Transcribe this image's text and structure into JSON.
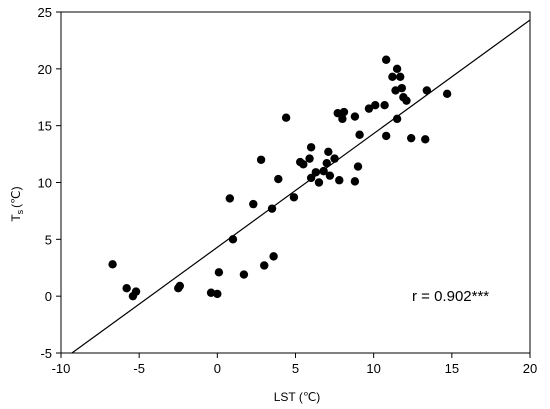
{
  "chart_data": {
    "type": "scatter",
    "title": "",
    "xlabel": "LST (℃)",
    "ylabel_main": "T",
    "ylabel_sub": "s",
    "ylabel_unit": "(℃)",
    "xlim": [
      -10,
      20
    ],
    "ylim": [
      -5,
      25
    ],
    "xticks": [
      -10,
      -5,
      0,
      5,
      10,
      15,
      20
    ],
    "yticks": [
      -5,
      0,
      5,
      10,
      15,
      20,
      25
    ],
    "grid": false,
    "annotation": "r = 0.902***",
    "fit_line": {
      "slope": 1.0,
      "intercept": 4.3
    },
    "points": [
      {
        "x": -6.7,
        "y": 2.8
      },
      {
        "x": -5.8,
        "y": 0.7
      },
      {
        "x": -5.4,
        "y": 0.0
      },
      {
        "x": -5.2,
        "y": 0.4
      },
      {
        "x": -2.5,
        "y": 0.7
      },
      {
        "x": -2.4,
        "y": 0.9
      },
      {
        "x": -0.4,
        "y": 0.3
      },
      {
        "x": 0.0,
        "y": 0.2
      },
      {
        "x": 0.1,
        "y": 2.1
      },
      {
        "x": 0.8,
        "y": 8.6
      },
      {
        "x": 1.0,
        "y": 5.0
      },
      {
        "x": 1.7,
        "y": 1.9
      },
      {
        "x": 2.3,
        "y": 8.1
      },
      {
        "x": 2.8,
        "y": 12.0
      },
      {
        "x": 3.0,
        "y": 2.7
      },
      {
        "x": 3.5,
        "y": 7.7
      },
      {
        "x": 3.6,
        "y": 3.5
      },
      {
        "x": 3.9,
        "y": 10.3
      },
      {
        "x": 4.4,
        "y": 15.7
      },
      {
        "x": 4.9,
        "y": 8.7
      },
      {
        "x": 5.3,
        "y": 11.8
      },
      {
        "x": 5.5,
        "y": 11.6
      },
      {
        "x": 5.9,
        "y": 12.1
      },
      {
        "x": 6.0,
        "y": 13.1
      },
      {
        "x": 6.0,
        "y": 10.4
      },
      {
        "x": 6.3,
        "y": 10.9
      },
      {
        "x": 6.5,
        "y": 10.0
      },
      {
        "x": 6.8,
        "y": 11.0
      },
      {
        "x": 7.0,
        "y": 11.7
      },
      {
        "x": 7.1,
        "y": 12.7
      },
      {
        "x": 7.2,
        "y": 10.6
      },
      {
        "x": 7.5,
        "y": 12.1
      },
      {
        "x": 7.7,
        "y": 16.1
      },
      {
        "x": 7.8,
        "y": 10.2
      },
      {
        "x": 8.0,
        "y": 15.6
      },
      {
        "x": 8.1,
        "y": 16.2
      },
      {
        "x": 8.8,
        "y": 10.1
      },
      {
        "x": 8.8,
        "y": 15.8
      },
      {
        "x": 9.0,
        "y": 11.4
      },
      {
        "x": 9.1,
        "y": 14.2
      },
      {
        "x": 9.7,
        "y": 16.5
      },
      {
        "x": 10.1,
        "y": 16.8
      },
      {
        "x": 10.7,
        "y": 16.8
      },
      {
        "x": 10.8,
        "y": 20.8
      },
      {
        "x": 10.8,
        "y": 14.1
      },
      {
        "x": 11.2,
        "y": 19.3
      },
      {
        "x": 11.4,
        "y": 18.1
      },
      {
        "x": 11.5,
        "y": 15.6
      },
      {
        "x": 11.5,
        "y": 20.0
      },
      {
        "x": 11.7,
        "y": 19.3
      },
      {
        "x": 11.8,
        "y": 18.3
      },
      {
        "x": 11.9,
        "y": 17.5
      },
      {
        "x": 12.1,
        "y": 17.2
      },
      {
        "x": 12.4,
        "y": 13.9
      },
      {
        "x": 13.3,
        "y": 13.8
      },
      {
        "x": 13.4,
        "y": 18.1
      },
      {
        "x": 14.7,
        "y": 17.8
      }
    ]
  }
}
